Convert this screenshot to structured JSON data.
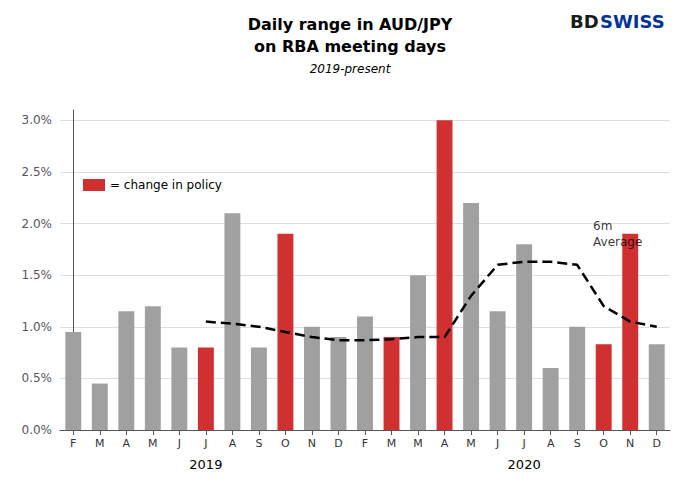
{
  "chart_data": {
    "type": "bar",
    "title": "Daily range in AUD/JPY\non RBA meeting days",
    "subtitle": "2019-present",
    "categories": [
      "F",
      "M",
      "A",
      "M",
      "J",
      "J",
      "A",
      "S",
      "O",
      "N",
      "D",
      "F",
      "M",
      "M",
      "A",
      "M",
      "J",
      "J",
      "A",
      "S",
      "O",
      "N",
      "D"
    ],
    "series": [
      {
        "name": "= change in policy",
        "type": "bar",
        "color": "#d03030",
        "colors": [
          "#a0a0a0",
          "#a0a0a0",
          "#a0a0a0",
          "#a0a0a0",
          "#a0a0a0",
          "#d03030",
          "#a0a0a0",
          "#a0a0a0",
          "#d03030",
          "#a0a0a0",
          "#a0a0a0",
          "#a0a0a0",
          "#d03030",
          "#a0a0a0",
          "#d03030",
          "#a0a0a0",
          "#a0a0a0",
          "#a0a0a0",
          "#a0a0a0",
          "#a0a0a0",
          "#d03030",
          "#d03030",
          "#a0a0a0"
        ],
        "values": [
          0.0095,
          0.0045,
          0.0115,
          0.012,
          0.008,
          0.008,
          0.021,
          0.008,
          0.019,
          0.01,
          0.009,
          0.011,
          0.009,
          0.015,
          0.03,
          0.022,
          0.0115,
          0.018,
          0.006,
          0.01,
          0.0083,
          0.019,
          0.0083
        ]
      },
      {
        "type": "line",
        "color": "#000000",
        "line_style": "dashed",
        "values": [
          null,
          null,
          null,
          null,
          null,
          0.0105,
          0.0103,
          0.01,
          0.0095,
          0.009,
          0.0087,
          0.0087,
          0.0088,
          0.009,
          0.009,
          0.013,
          0.016,
          0.0163,
          0.0163,
          0.016,
          0.012,
          0.0105,
          0.01
        ]
      }
    ],
    "ylim": [
      0,
      0.031
    ],
    "yticks": [
      {
        "value": 0.0,
        "label": "0.0%"
      },
      {
        "value": 0.005,
        "label": "0.5%"
      },
      {
        "value": 0.01,
        "label": "1.0%"
      },
      {
        "value": 0.015,
        "label": "1.5%"
      },
      {
        "value": 0.02,
        "label": "2.0%"
      },
      {
        "value": 0.025,
        "label": "2.5%"
      },
      {
        "value": 0.03,
        "label": "3.0%"
      }
    ],
    "grid": true,
    "legend": "upper left",
    "annotations": [
      {
        "text": "2019",
        "x": 5
      },
      {
        "text": "2020",
        "x": 17
      },
      {
        "text": "6m\nAverage",
        "x": 19.6,
        "y": 0.019
      },
      {
        "text": "BD",
        "color": "#1a1a1a"
      },
      {
        "text": "SWISS",
        "color": "#003399"
      }
    ]
  }
}
